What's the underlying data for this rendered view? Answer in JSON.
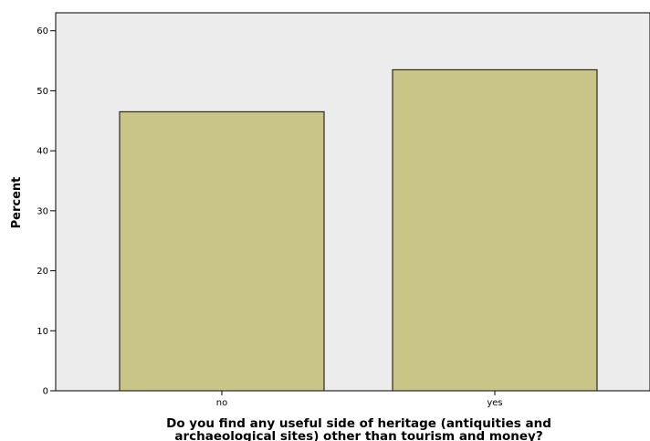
{
  "chart_data": {
    "type": "bar",
    "categories": [
      "no",
      "yes"
    ],
    "values": [
      46.5,
      53.5
    ],
    "title": "",
    "xlabel": "Do you find any useful side of heritage (antiquities and archaeological sites) other than tourism and money?",
    "xlabel_lines": [
      "Do you find any useful side of heritage (antiquities and",
      "archaeological sites) other than tourism and money?"
    ],
    "ylabel": "Percent",
    "ylim": [
      0,
      60
    ],
    "yticks": [
      0,
      10,
      20,
      30,
      40,
      50,
      60
    ],
    "grid": false,
    "legend": "none",
    "colors": {
      "bar_fill": "#c9c587",
      "bar_stroke": "#2b2b1a",
      "plot_background": "#ececec",
      "axis": "#000000"
    }
  }
}
